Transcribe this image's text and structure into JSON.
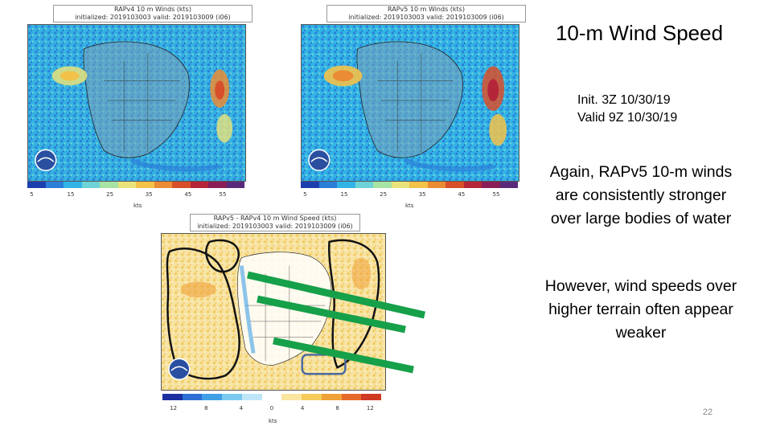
{
  "slide": {
    "title": "10-m Wind Speed",
    "init_line": "Init. 3Z 10/30/19",
    "valid_line": "Valid 9Z 10/30/19",
    "paragraph_1": "Again, RAPv5 10-m winds are consistently stronger over large bodies of water",
    "paragraph_2": "However, wind speeds over higher terrain often appear weaker",
    "page_number": "22"
  },
  "panels": {
    "rapv4": {
      "header_line1": "RAPv4 10 m Winds (kts)",
      "header_line2": "initialized: 2019103003 valid: 2019103009 (i06)",
      "logo": "noaa-logo",
      "colorbar_ticks": [
        "5",
        "15",
        "25",
        "35",
        "45",
        "55"
      ],
      "units": "kts"
    },
    "rapv5": {
      "header_line1": "RAPv5 10 m Winds (kts)",
      "header_line2": "initialized: 2019103003 valid: 2019103009 (i06)",
      "logo": "noaa-logo",
      "colorbar_ticks": [
        "5",
        "15",
        "25",
        "35",
        "45",
        "55"
      ],
      "units": "kts"
    },
    "diff": {
      "header_line1": "RAPv5 - RAPv4 10 m Wind Speed (kts)",
      "header_line2": "initialized: 2019103003 valid: 2019103009 (i06)",
      "logo": "noaa-logo",
      "colorbar_ticks": [
        "12",
        "8",
        "4",
        "0",
        "4",
        "8",
        "12"
      ],
      "units": "kts"
    }
  },
  "colors": {
    "speed_scale": [
      "#1c3fb0",
      "#2b7fd8",
      "#32b4e6",
      "#6ed3d6",
      "#a7e3a4",
      "#e8e37a",
      "#f2c24a",
      "#ea8c35",
      "#d8502b",
      "#b5253a",
      "#8a1f58",
      "#5a2a7a"
    ],
    "diff_scale": [
      "#1b2fa0",
      "#2b6fd6",
      "#3fa0e6",
      "#7bcaf0",
      "#bfe6f7",
      "#ffffff",
      "#fbe6a0",
      "#f6cb5a",
      "#f0a23a",
      "#e66b2a",
      "#cf3a22"
    ],
    "annotation_arrow": "#16a04a",
    "annotation_box": "#4a6aa0",
    "outline": "#111111"
  }
}
